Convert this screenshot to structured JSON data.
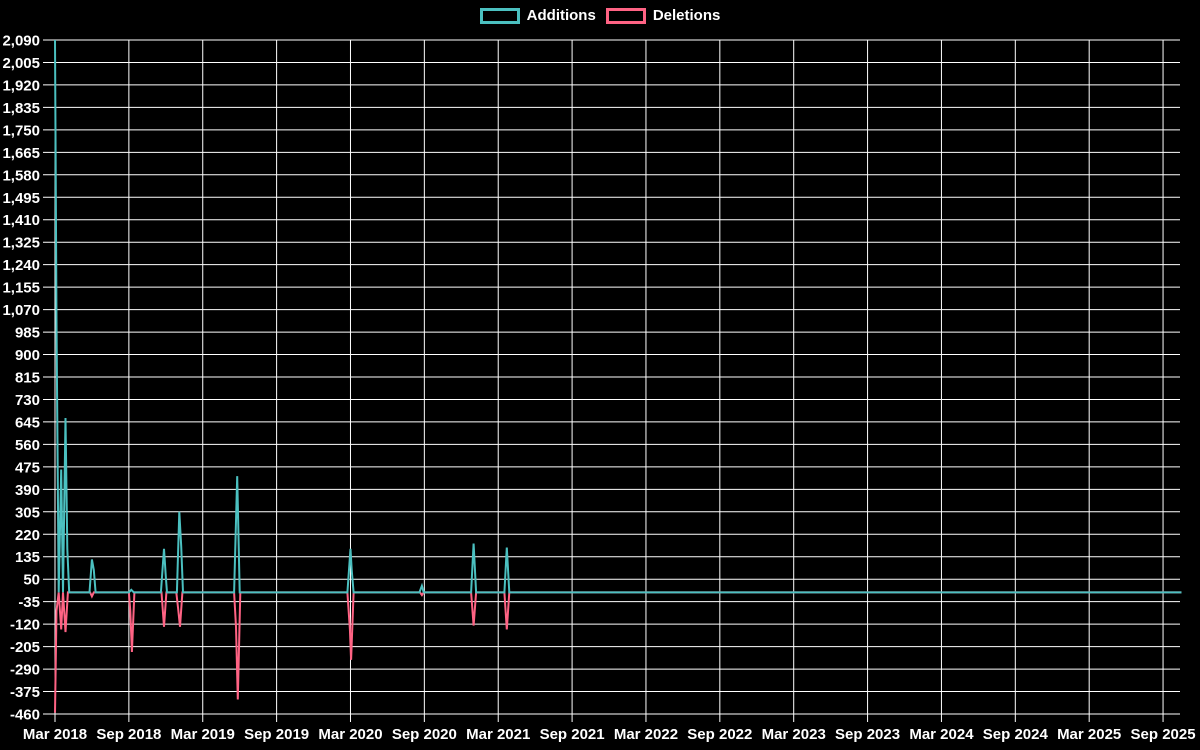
{
  "chart_data": {
    "type": "line",
    "title": "",
    "background_color": "#000000",
    "grid_color": "#ffffff",
    "text_color": "#ffffff",
    "grid": true,
    "legend_position": "top",
    "x_axis": {
      "unit": "months since Mar 2018",
      "months_between_ticks": 6,
      "domain_months": [
        0,
        91.5
      ],
      "tick_labels": [
        "Mar 2018",
        "Sep 2018",
        "Mar 2019",
        "Sep 2019",
        "Mar 2020",
        "Sep 2020",
        "Mar 2021",
        "Sep 2021",
        "Mar 2022",
        "Sep 2022",
        "Mar 2023",
        "Sep 2023",
        "Mar 2024",
        "Sep 2024",
        "Mar 2025",
        "Sep 2025"
      ]
    },
    "y_axis": {
      "min": -460,
      "max": 2090,
      "step": 85,
      "tick_labels": [
        "-460",
        "-375",
        "-290",
        "-205",
        "-120",
        "-35",
        "50",
        "135",
        "220",
        "305",
        "390",
        "475",
        "560",
        "645",
        "730",
        "815",
        "900",
        "985",
        "1,070",
        "1,155",
        "1,240",
        "1,325",
        "1,410",
        "1,495",
        "1,580",
        "1,665",
        "1,750",
        "1,835",
        "1,920",
        "2,005",
        "2,090"
      ]
    },
    "series": [
      {
        "name": "Additions",
        "color": "#4bc0c0",
        "points": [
          [
            0,
            2090
          ],
          [
            0.12,
            1020
          ],
          [
            0.3,
            0
          ],
          [
            0.5,
            465
          ],
          [
            0.65,
            0
          ],
          [
            0.85,
            660
          ],
          [
            1.0,
            165
          ],
          [
            1.15,
            0
          ],
          [
            2.8,
            0
          ],
          [
            3.0,
            125
          ],
          [
            3.15,
            85
          ],
          [
            3.3,
            0
          ],
          [
            6.0,
            0
          ],
          [
            6.2,
            10
          ],
          [
            6.4,
            0
          ],
          [
            8.6,
            0
          ],
          [
            8.85,
            165
          ],
          [
            9.0,
            60
          ],
          [
            9.1,
            0
          ],
          [
            9.9,
            0
          ],
          [
            10.1,
            305
          ],
          [
            10.25,
            175
          ],
          [
            10.4,
            0
          ],
          [
            14.55,
            0
          ],
          [
            14.8,
            440
          ],
          [
            15.0,
            0
          ],
          [
            23.75,
            0
          ],
          [
            24.0,
            165
          ],
          [
            24.1,
            85
          ],
          [
            24.25,
            0
          ],
          [
            29.6,
            0
          ],
          [
            29.8,
            25
          ],
          [
            29.95,
            0
          ],
          [
            33.8,
            0
          ],
          [
            34.0,
            185
          ],
          [
            34.2,
            0
          ],
          [
            36.5,
            0
          ],
          [
            36.7,
            170
          ],
          [
            36.9,
            0
          ],
          [
            91.5,
            0
          ]
        ]
      },
      {
        "name": "Deletions",
        "color": "#ff6384",
        "points": [
          [
            0,
            -455
          ],
          [
            0.12,
            -70
          ],
          [
            0.3,
            0
          ],
          [
            0.5,
            -140
          ],
          [
            0.65,
            0
          ],
          [
            0.85,
            -150
          ],
          [
            1.05,
            0
          ],
          [
            2.85,
            0
          ],
          [
            3.0,
            -15
          ],
          [
            3.15,
            0
          ],
          [
            6.0,
            0
          ],
          [
            6.12,
            -70
          ],
          [
            6.25,
            -225
          ],
          [
            6.45,
            0
          ],
          [
            8.65,
            0
          ],
          [
            8.85,
            -130
          ],
          [
            9.05,
            0
          ],
          [
            9.85,
            0
          ],
          [
            10.0,
            -60
          ],
          [
            10.15,
            -130
          ],
          [
            10.35,
            0
          ],
          [
            14.55,
            0
          ],
          [
            14.7,
            -130
          ],
          [
            14.85,
            -405
          ],
          [
            15.05,
            0
          ],
          [
            23.75,
            0
          ],
          [
            23.95,
            -140
          ],
          [
            24.05,
            -255
          ],
          [
            24.25,
            0
          ],
          [
            29.65,
            0
          ],
          [
            29.8,
            -10
          ],
          [
            29.95,
            0
          ],
          [
            33.8,
            0
          ],
          [
            34.0,
            -125
          ],
          [
            34.2,
            0
          ],
          [
            36.5,
            0
          ],
          [
            36.7,
            -140
          ],
          [
            36.9,
            0
          ],
          [
            91.5,
            0
          ]
        ]
      }
    ]
  }
}
